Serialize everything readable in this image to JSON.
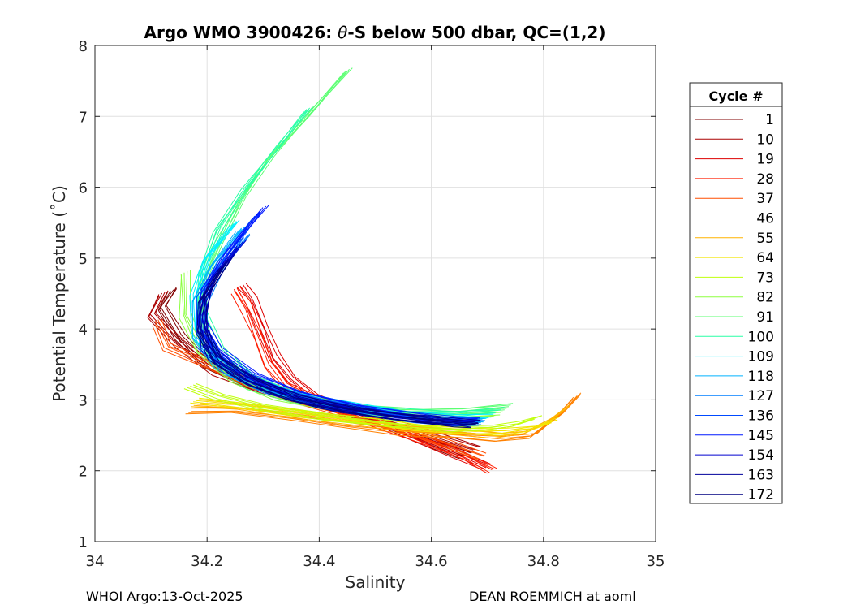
{
  "chart_data": {
    "type": "line",
    "title_prefix": "Argo WMO 3900426: ",
    "title_theta": "θ",
    "title_suffix": "-S below 500 dbar,  QC=(1,2)",
    "xlabel": "Salinity",
    "ylabel": "Potential Temperature (˚C)",
    "xlim": [
      34,
      35
    ],
    "ylim": [
      1,
      8
    ],
    "xticks": [
      34,
      34.2,
      34.4,
      34.6,
      34.8,
      35
    ],
    "xtick_labels": [
      "34",
      "34.2",
      "34.4",
      "34.6",
      "34.8",
      "35"
    ],
    "yticks": [
      1,
      2,
      3,
      4,
      5,
      6,
      7,
      8
    ],
    "ytick_labels": [
      "1",
      "2",
      "3",
      "4",
      "5",
      "6",
      "7",
      "8"
    ],
    "grid": true,
    "legend": {
      "title": "Cycle #",
      "placement": "outside-right",
      "entries": [
        "1",
        "10",
        "19",
        "28",
        "37",
        "46",
        "55",
        "64",
        "73",
        "82",
        "91",
        "100",
        "109",
        "118",
        "127",
        "136",
        "145",
        "154",
        "163",
        "172"
      ],
      "colors": [
        "#800000",
        "#aa0000",
        "#dd0000",
        "#ff1c00",
        "#ff4e00",
        "#ff8000",
        "#ffb300",
        "#f2e500",
        "#c0ff0d",
        "#8dff40",
        "#5bff72",
        "#28ffa5",
        "#00f0ff",
        "#00b2ff",
        "#007eff",
        "#004aff",
        "#0018ff",
        "#0000cf",
        "#00009c",
        "#000080"
      ]
    },
    "series": [
      {
        "name": "1",
        "color": "#800000",
        "theta": [
          4.55,
          4.3,
          3.9,
          3.5,
          3.2,
          3.0,
          2.85,
          2.65,
          2.45,
          2.2
        ],
        "salinity": [
          34.14,
          34.12,
          34.15,
          34.2,
          34.28,
          34.38,
          34.45,
          34.52,
          34.58,
          34.66
        ]
      },
      {
        "name": "10",
        "color": "#aa0000",
        "theta": [
          4.5,
          4.2,
          3.8,
          3.4,
          3.1,
          2.9,
          2.7,
          2.5,
          2.3
        ],
        "salinity": [
          34.12,
          34.1,
          34.15,
          34.22,
          34.32,
          34.42,
          34.52,
          34.6,
          34.68
        ]
      },
      {
        "name": "19",
        "color": "#dd0000",
        "theta": [
          4.6,
          4.4,
          4.0,
          3.6,
          3.3,
          3.05,
          2.85,
          2.65,
          2.45,
          2.25,
          2.05
        ],
        "salinity": [
          34.26,
          34.28,
          34.3,
          34.32,
          34.35,
          34.39,
          34.45,
          34.52,
          34.58,
          34.64,
          34.7
        ]
      },
      {
        "name": "28",
        "color": "#ff1c00",
        "theta": [
          4.55,
          4.3,
          3.9,
          3.5,
          3.2,
          3.0,
          2.8,
          2.6,
          2.4,
          2.2,
          2.0
        ],
        "salinity": [
          34.25,
          34.27,
          34.29,
          34.31,
          34.34,
          34.39,
          34.46,
          34.53,
          34.6,
          34.66,
          34.71
        ]
      },
      {
        "name": "37",
        "color": "#ff4e00",
        "theta": [
          4.1,
          3.75,
          3.5,
          3.2,
          2.95,
          2.75,
          2.55,
          2.4,
          2.2
        ],
        "salinity": [
          34.11,
          34.13,
          34.2,
          34.28,
          34.38,
          34.48,
          34.56,
          34.62,
          34.69
        ]
      },
      {
        "name": "46",
        "color": "#ff8000",
        "theta": [
          2.85,
          2.85,
          2.75,
          2.65,
          2.55,
          2.5,
          2.45,
          2.5,
          2.8,
          3.05
        ],
        "salinity": [
          34.17,
          34.25,
          34.35,
          34.45,
          34.55,
          34.65,
          34.72,
          34.78,
          34.83,
          34.86
        ]
      },
      {
        "name": "55",
        "color": "#ffb300",
        "theta": [
          2.95,
          2.9,
          2.8,
          2.7,
          2.6,
          2.55,
          2.5,
          2.55,
          2.7,
          2.9
        ],
        "salinity": [
          34.18,
          34.26,
          34.36,
          34.46,
          34.56,
          34.66,
          34.72,
          34.77,
          34.81,
          34.84
        ]
      },
      {
        "name": "64",
        "color": "#f2e500",
        "theta": [
          3.0,
          2.9,
          2.8,
          2.7,
          2.6,
          2.55,
          2.55,
          2.6,
          2.7
        ],
        "salinity": [
          34.18,
          34.28,
          34.38,
          34.48,
          34.58,
          34.68,
          34.73,
          34.78,
          34.82
        ]
      },
      {
        "name": "73",
        "color": "#c0ff0d",
        "theta": [
          3.2,
          3.05,
          2.9,
          2.75,
          2.65,
          2.6,
          2.6,
          2.65,
          2.75
        ],
        "salinity": [
          34.17,
          34.22,
          34.3,
          34.42,
          34.54,
          34.64,
          34.7,
          34.75,
          34.79
        ]
      },
      {
        "name": "82",
        "color": "#8dff40",
        "theta": [
          4.8,
          4.2,
          3.7,
          3.3,
          3.05,
          2.9,
          2.8,
          2.75,
          2.8
        ],
        "salinity": [
          34.16,
          34.16,
          34.19,
          34.25,
          34.33,
          34.42,
          34.52,
          34.62,
          34.72
        ]
      },
      {
        "name": "91",
        "color": "#5bff72",
        "theta": [
          7.65,
          7.0,
          6.4,
          5.8,
          5.2,
          4.6,
          4.0,
          3.5,
          3.2,
          3.0,
          2.9,
          2.85,
          2.85,
          2.9
        ],
        "salinity": [
          34.45,
          34.38,
          34.31,
          34.26,
          34.22,
          34.19,
          34.19,
          34.22,
          34.28,
          34.36,
          34.45,
          34.55,
          34.65,
          34.74
        ]
      },
      {
        "name": "100",
        "color": "#28ffa5",
        "theta": [
          7.1,
          6.6,
          6.0,
          5.4,
          4.8,
          4.2,
          3.7,
          3.3,
          3.05,
          2.9,
          2.82,
          2.8,
          2.85
        ],
        "salinity": [
          34.38,
          34.33,
          34.27,
          34.22,
          34.19,
          34.19,
          34.22,
          34.28,
          34.36,
          34.45,
          34.55,
          34.64,
          34.72
        ]
      },
      {
        "name": "109",
        "color": "#00f0ff",
        "theta": [
          5.5,
          5.0,
          4.5,
          4.0,
          3.6,
          3.3,
          3.05,
          2.9,
          2.8,
          2.75,
          2.75
        ],
        "salinity": [
          34.25,
          34.2,
          34.18,
          34.18,
          34.21,
          34.27,
          34.36,
          34.46,
          34.55,
          34.64,
          34.7
        ]
      },
      {
        "name": "118",
        "color": "#00b2ff",
        "theta": [
          5.4,
          4.9,
          4.4,
          3.9,
          3.5,
          3.2,
          3.0,
          2.85,
          2.75,
          2.7,
          2.7
        ],
        "salinity": [
          34.26,
          34.21,
          34.18,
          34.18,
          34.22,
          34.29,
          34.38,
          34.47,
          34.56,
          34.64,
          34.69
        ]
      },
      {
        "name": "127",
        "color": "#007eff",
        "theta": [
          5.3,
          4.8,
          4.3,
          3.8,
          3.4,
          3.15,
          2.95,
          2.82,
          2.72,
          2.68,
          2.68
        ],
        "salinity": [
          34.27,
          34.22,
          34.19,
          34.19,
          34.24,
          34.31,
          34.4,
          34.49,
          34.58,
          34.65,
          34.69
        ]
      },
      {
        "name": "136",
        "color": "#004aff",
        "theta": [
          5.6,
          5.0,
          4.5,
          4.0,
          3.6,
          3.3,
          3.05,
          2.88,
          2.78,
          2.72,
          2.7
        ],
        "salinity": [
          34.29,
          34.23,
          34.19,
          34.19,
          34.22,
          34.28,
          34.37,
          34.47,
          34.56,
          34.64,
          34.68
        ]
      },
      {
        "name": "145",
        "color": "#0018ff",
        "theta": [
          5.7,
          5.1,
          4.6,
          4.1,
          3.7,
          3.35,
          3.08,
          2.9,
          2.78,
          2.72,
          2.7
        ],
        "salinity": [
          34.3,
          34.24,
          34.2,
          34.19,
          34.22,
          34.28,
          34.36,
          34.46,
          34.55,
          34.63,
          34.68
        ]
      },
      {
        "name": "154",
        "color": "#0000cf",
        "theta": [
          5.2,
          4.7,
          4.2,
          3.75,
          3.4,
          3.12,
          2.92,
          2.8,
          2.72,
          2.68,
          2.68
        ],
        "salinity": [
          34.26,
          34.21,
          34.19,
          34.2,
          34.25,
          34.32,
          34.41,
          34.5,
          34.58,
          34.64,
          34.68
        ]
      },
      {
        "name": "163",
        "color": "#00009c",
        "theta": [
          5.0,
          4.5,
          4.0,
          3.6,
          3.3,
          3.05,
          2.88,
          2.78,
          2.72,
          2.68,
          2.66
        ],
        "salinity": [
          34.24,
          34.2,
          34.19,
          34.21,
          34.27,
          34.35,
          34.44,
          34.53,
          34.6,
          34.65,
          34.68
        ]
      },
      {
        "name": "172",
        "color": "#000080",
        "theta": [
          4.9,
          4.4,
          3.95,
          3.55,
          3.25,
          3.02,
          2.86,
          2.76,
          2.7,
          2.67,
          2.66
        ],
        "salinity": [
          34.23,
          34.19,
          34.19,
          34.22,
          34.28,
          34.36,
          34.45,
          34.53,
          34.6,
          34.65,
          34.68
        ]
      }
    ]
  },
  "footer": {
    "left": "WHOI Argo:13-Oct-2025",
    "right": "DEAN ROEMMICH at aoml"
  }
}
